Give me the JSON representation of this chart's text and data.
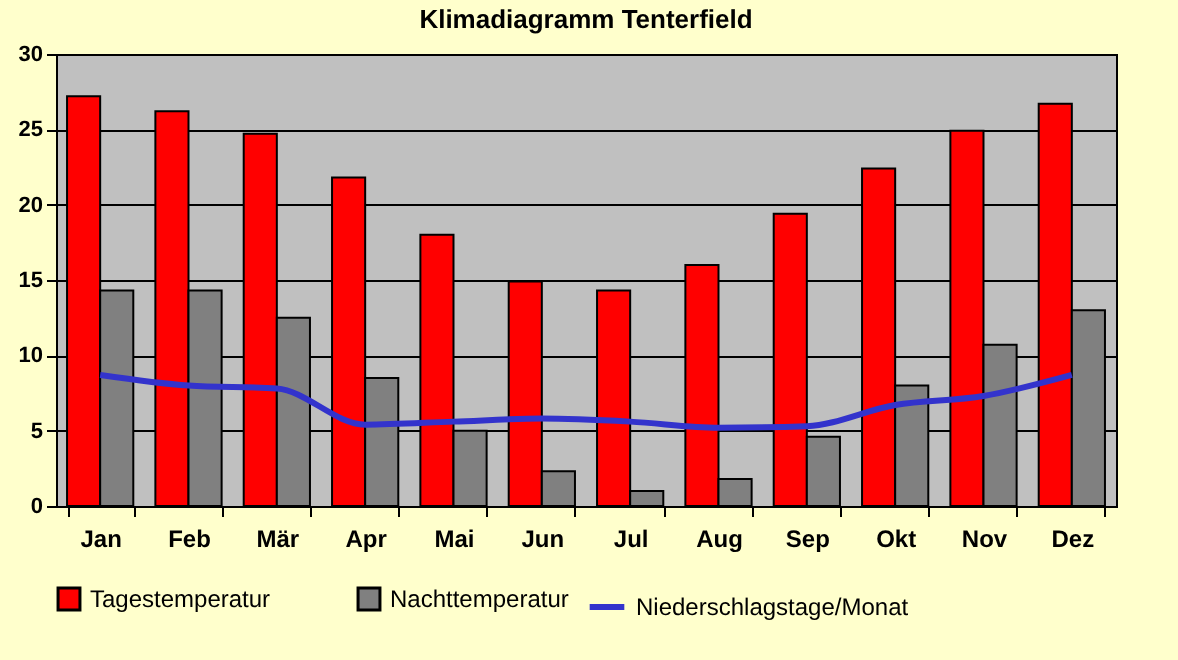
{
  "chart_data": {
    "type": "bar",
    "title": "Klimadiagramm Tenterfield",
    "categories": [
      "Jan",
      "Feb",
      "Mär",
      "Apr",
      "Mai",
      "Jun",
      "Jul",
      "Aug",
      "Sep",
      "Okt",
      "Nov",
      "Dez"
    ],
    "series": [
      {
        "name": "Tagestemperatur",
        "color": "#ff0000",
        "values": [
          27.2,
          26.2,
          24.7,
          21.8,
          18.0,
          14.9,
          14.3,
          16.0,
          19.4,
          22.4,
          24.9,
          26.7
        ]
      },
      {
        "name": "Nachttemperatur",
        "color": "#808080",
        "values": [
          14.3,
          14.3,
          12.5,
          8.5,
          5.0,
          2.3,
          1.0,
          1.8,
          4.6,
          8.0,
          10.7,
          13.0
        ]
      },
      {
        "name": "Niederschlagstage/Monat",
        "type": "line",
        "color": "#3333cc",
        "values": [
          8.7,
          8.0,
          7.8,
          5.4,
          5.6,
          5.8,
          5.6,
          5.2,
          5.3,
          6.7,
          7.3,
          8.7
        ]
      }
    ],
    "ylim": [
      0,
      30
    ],
    "yticks": [
      0,
      5,
      10,
      15,
      20,
      25,
      30
    ],
    "grid": "y",
    "legend": "bottom"
  }
}
